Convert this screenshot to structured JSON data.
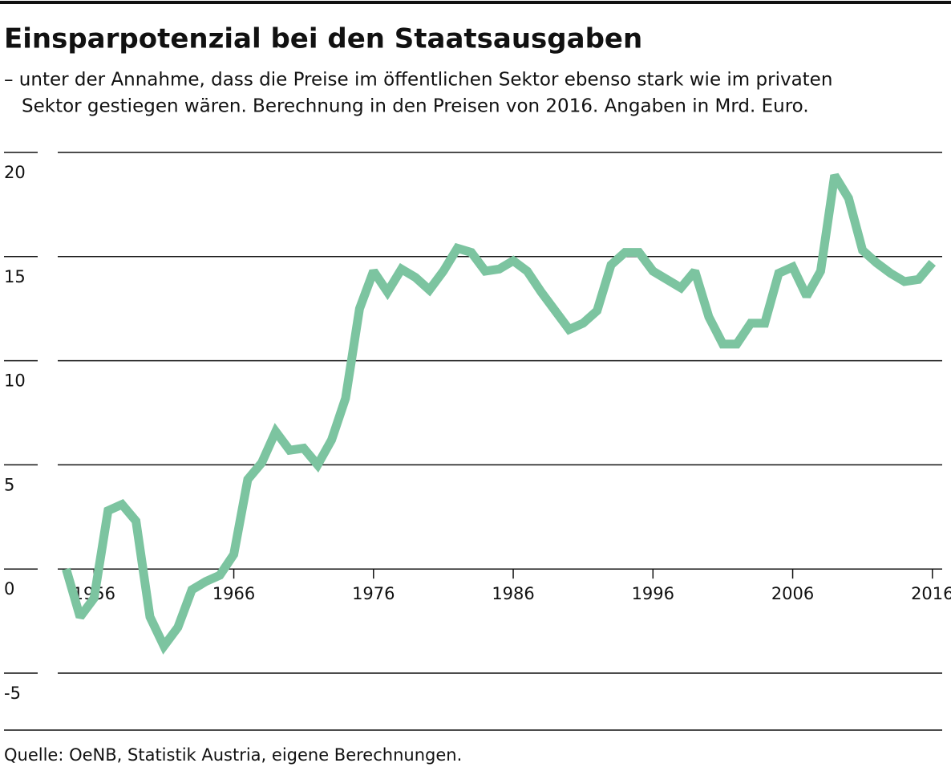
{
  "chart_data": {
    "type": "line",
    "title": "Einsparpotenzial bei den Staatsausgaben",
    "subtitle": [
      "– unter der Annahme, dass die Preise im öffentlichen Sektor ebenso stark wie im privaten",
      "Sektor gestiegen wären. Berechnung in den Preisen von 2016. Angaben in Mrd. Euro."
    ],
    "source": "Quelle: OeNB, Statistik Austria, eigene Berechnungen.",
    "x": [
      1954,
      1955,
      1956,
      1957,
      1958,
      1959,
      1960,
      1961,
      1962,
      1963,
      1964,
      1965,
      1966,
      1967,
      1968,
      1969,
      1970,
      1971,
      1972,
      1973,
      1974,
      1975,
      1976,
      1977,
      1978,
      1979,
      1980,
      1981,
      1982,
      1983,
      1984,
      1985,
      1986,
      1987,
      1988,
      1989,
      1990,
      1991,
      1992,
      1993,
      1994,
      1995,
      1996,
      1997,
      1998,
      1999,
      2000,
      2001,
      2002,
      2003,
      2004,
      2005,
      2006,
      2007,
      2008,
      2009,
      2010,
      2011,
      2012,
      2013,
      2014,
      2015,
      2016
    ],
    "series": [
      {
        "name": "Einsparpotenzial",
        "color": "#7cc4a0",
        "values": [
          0,
          -2.3,
          -1.4,
          2.8,
          3.1,
          2.3,
          -2.3,
          -3.7,
          -2.8,
          -1.0,
          -0.6,
          -0.3,
          0.7,
          4.3,
          5.1,
          6.6,
          5.7,
          5.8,
          5.0,
          6.2,
          8.2,
          12.5,
          14.3,
          13.3,
          14.4,
          14.0,
          13.4,
          14.3,
          15.4,
          15.2,
          14.3,
          14.4,
          14.8,
          14.3,
          13.3,
          12.4,
          11.5,
          11.8,
          12.4,
          14.6,
          15.2,
          15.2,
          14.3,
          13.9,
          13.5,
          14.3,
          12.1,
          10.8,
          10.8,
          11.8,
          11.8,
          14.2,
          14.5,
          13.1,
          14.3,
          18.9,
          17.8,
          15.3,
          14.7,
          14.2,
          13.8,
          13.9,
          14.7
        ]
      }
    ],
    "xlim": [
      1953.4,
      2016.7
    ],
    "xticks": [
      1956,
      1966,
      1976,
      1986,
      1996,
      2006,
      2016
    ],
    "ylim": [
      -5,
      20
    ],
    "yticks": [
      -5,
      0,
      5,
      10,
      15,
      20
    ],
    "grid": true
  }
}
